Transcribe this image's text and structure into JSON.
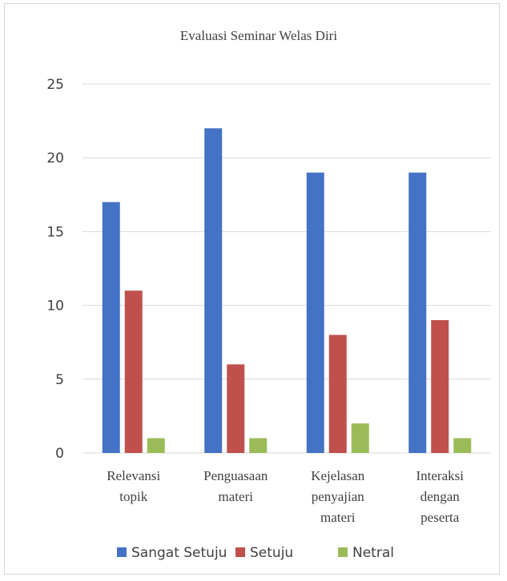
{
  "chart_data": {
    "type": "bar",
    "title": "Evaluasi Seminar Welas Diri",
    "categories": [
      [
        "Relevansi",
        "topik"
      ],
      [
        "Penguasaan",
        "materi"
      ],
      [
        "Kejelasan",
        "penyajian",
        "materi"
      ],
      [
        "Interaksi",
        "dengan",
        "peserta"
      ]
    ],
    "series": [
      {
        "name": "Sangat Setuju",
        "color": "#4472c4",
        "values": [
          17,
          22,
          19,
          19
        ]
      },
      {
        "name": "Setuju",
        "color": "#c0504d",
        "values": [
          11,
          6,
          8,
          9
        ]
      },
      {
        "name": "Netral",
        "color": "#9bbb59",
        "values": [
          1,
          1,
          2,
          1
        ]
      }
    ],
    "ylim": [
      0,
      25
    ],
    "yticks": [
      0,
      5,
      10,
      15,
      20,
      25
    ],
    "grid": true,
    "legend": "bottom"
  }
}
